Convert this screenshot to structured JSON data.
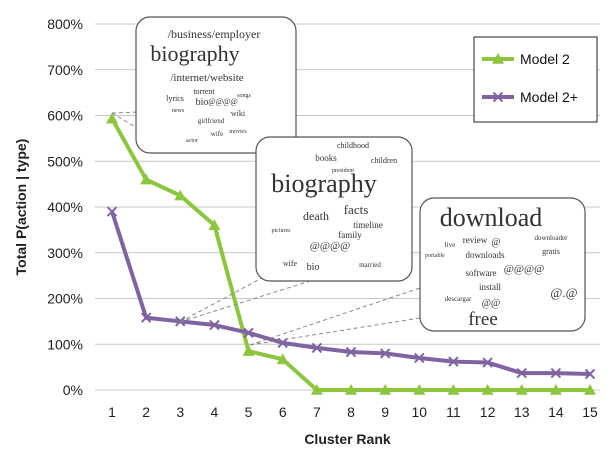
{
  "chart_data": {
    "type": "line",
    "xlabel": "Cluster Rank",
    "ylabel": "Total P(action | type)",
    "x": [
      1,
      2,
      3,
      4,
      5,
      6,
      7,
      8,
      9,
      10,
      11,
      12,
      13,
      14,
      15
    ],
    "ylim": [
      0,
      800
    ],
    "yticks": [
      0,
      100,
      200,
      300,
      400,
      500,
      600,
      700,
      800
    ],
    "ytick_labels": [
      "0%",
      "100%",
      "200%",
      "300%",
      "400%",
      "500%",
      "600%",
      "700%",
      "800%"
    ],
    "grid": "horizontal",
    "legend": {
      "placement": "top-right"
    },
    "series": [
      {
        "name": "Model 2",
        "marker": "triangle",
        "color": "#8cc63f",
        "values": [
          593,
          460,
          425,
          360,
          85,
          67,
          0,
          0,
          0,
          0,
          0,
          0,
          0,
          0,
          0
        ]
      },
      {
        "name": "Model 2+",
        "marker": "x",
        "color": "#8064a2",
        "values": [
          390,
          158,
          150,
          142,
          125,
          103,
          92,
          83,
          80,
          70,
          62,
          60,
          37,
          37,
          35
        ]
      }
    ],
    "annotations": [
      {
        "points_to_x": 1,
        "words": [
          {
            "text": "/business/employer",
            "size": 12
          },
          {
            "text": "biography",
            "size": 22
          },
          {
            "text": "/internet/website",
            "size": 11
          },
          {
            "text": "torrent",
            "size": 8
          },
          {
            "text": "songs",
            "size": 6
          },
          {
            "text": "lyrics",
            "size": 8
          },
          {
            "text": "news",
            "size": 6
          },
          {
            "text": "bio",
            "size": 10
          },
          {
            "text": "@@@@",
            "size": 8
          },
          {
            "text": "wiki",
            "size": 8
          },
          {
            "text": "girlfriend",
            "size": 7
          },
          {
            "text": "actor",
            "size": 6
          },
          {
            "text": "wife",
            "size": 7
          },
          {
            "text": "movies",
            "size": 6
          }
        ]
      },
      {
        "points_to_x": 3,
        "words": [
          {
            "text": "childhood",
            "size": 8
          },
          {
            "text": "books",
            "size": 9
          },
          {
            "text": "president",
            "size": 6
          },
          {
            "text": "children",
            "size": 8
          },
          {
            "text": "biography",
            "size": 26
          },
          {
            "text": "death",
            "size": 12
          },
          {
            "text": "facts",
            "size": 13
          },
          {
            "text": "timeline",
            "size": 9
          },
          {
            "text": "pictures",
            "size": 6
          },
          {
            "text": "family",
            "size": 9
          },
          {
            "text": "@@@@",
            "size": 11
          },
          {
            "text": "wife",
            "size": 8
          },
          {
            "text": "bio",
            "size": 10
          },
          {
            "text": "married",
            "size": 7
          }
        ]
      },
      {
        "points_to_x": 5,
        "words": [
          {
            "text": "download",
            "size": 26
          },
          {
            "text": "review",
            "size": 9
          },
          {
            "text": "@",
            "size": 10
          },
          {
            "text": "downloader",
            "size": 7
          },
          {
            "text": "live",
            "size": 7
          },
          {
            "text": "gratis",
            "size": 8
          },
          {
            "text": "portable",
            "size": 6
          },
          {
            "text": "downloads",
            "size": 9
          },
          {
            "text": "@@@@",
            "size": 11
          },
          {
            "text": "software",
            "size": 9
          },
          {
            "text": "install",
            "size": 9
          },
          {
            "text": "@.@",
            "size": 13
          },
          {
            "text": "descargar",
            "size": 7
          },
          {
            "text": "@@",
            "size": 10
          },
          {
            "text": "free",
            "size": 19
          }
        ]
      }
    ]
  }
}
